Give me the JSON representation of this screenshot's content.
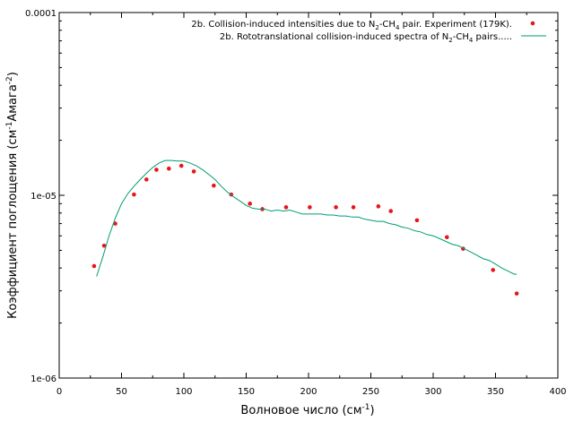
{
  "chart_data": {
    "type": "scatter",
    "yscale": "log",
    "xlim": [
      0,
      400
    ],
    "ylim": [
      1e-06,
      0.0001
    ],
    "xticks": [
      0,
      50,
      100,
      150,
      200,
      250,
      300,
      350,
      400
    ],
    "xtick_labels": [
      "0",
      "50",
      "100",
      "150",
      "200",
      "250",
      "300",
      "350",
      "400"
    ],
    "yticks": [
      1e-06,
      1e-05,
      0.0001
    ],
    "ytick_labels": [
      "1e-06",
      "1e-05",
      "0.0001"
    ],
    "xlabel": {
      "main": "Волновое число (см",
      "sup": "-1",
      "tail": ")"
    },
    "ylabel": {
      "part1": "Коэффициент поглощения (см",
      "sup1": "-1",
      "part2": "Амага",
      "sup2": "-2",
      "part3": ")"
    },
    "legend_position": "top-right",
    "grid": false,
    "series": [
      {
        "name": "2b. Collision-induced intensities due to N2-CH4 pair. Experiment (179K).",
        "legend": {
          "pre": "2b. Collision-induced intensities due to N",
          "sub1": "2",
          "mid": "-CH",
          "sub2": "4",
          "post": " pair. Experiment (179K)."
        },
        "kind": "points",
        "color": "#e8151b",
        "x": [
          28,
          36,
          45,
          60,
          70,
          78,
          88,
          98,
          108,
          124,
          138,
          153,
          163,
          182,
          201,
          222,
          236,
          256,
          266,
          287,
          311,
          324,
          348,
          367
        ],
        "y": [
          4.1e-06,
          5.3e-06,
          7e-06,
          1.01e-05,
          1.22e-05,
          1.38e-05,
          1.4e-05,
          1.45e-05,
          1.35e-05,
          1.13e-05,
          1.01e-05,
          9e-06,
          8.4e-06,
          8.6e-06,
          8.6e-06,
          8.6e-06,
          8.6e-06,
          8.7e-06,
          8.2e-06,
          7.3e-06,
          5.9e-06,
          5.1e-06,
          3.9e-06,
          2.9e-06
        ]
      },
      {
        "name": "2b. Rototranslational collision-induced spectra of N2-CH4 pairs.....",
        "legend": {
          "pre": "2b. Rototranslational collision-induced spectra of N",
          "sub1": "2",
          "mid": "-CH",
          "sub2": "4",
          "post": " pairs....."
        },
        "kind": "line",
        "color": "#009e73",
        "x": [
          30,
          35,
          40,
          45,
          50,
          55,
          60,
          65,
          70,
          75,
          80,
          85,
          90,
          95,
          100,
          105,
          110,
          115,
          120,
          125,
          130,
          135,
          140,
          145,
          150,
          155,
          160,
          165,
          170,
          175,
          180,
          185,
          190,
          195,
          200,
          205,
          210,
          215,
          220,
          225,
          230,
          235,
          240,
          245,
          250,
          255,
          260,
          265,
          270,
          275,
          280,
          285,
          290,
          295,
          300,
          305,
          310,
          315,
          320,
          325,
          330,
          335,
          340,
          345,
          350,
          355,
          360,
          365,
          367
        ],
        "y": [
          3.6e-06,
          4.6e-06,
          6e-06,
          7.5e-06,
          9e-06,
          1.02e-05,
          1.12e-05,
          1.22e-05,
          1.32e-05,
          1.42e-05,
          1.5e-05,
          1.55e-05,
          1.55e-05,
          1.54e-05,
          1.54e-05,
          1.5e-05,
          1.45e-05,
          1.38e-05,
          1.3e-05,
          1.22e-05,
          1.12e-05,
          1.04e-05,
          9.8e-06,
          9.3e-06,
          8.8e-06,
          8.5e-06,
          8.4e-06,
          8.4e-06,
          8.2e-06,
          8.3e-06,
          8.2e-06,
          8.3e-06,
          8.1e-06,
          7.9e-06,
          7.9e-06,
          7.9e-06,
          7.9e-06,
          7.8e-06,
          7.8e-06,
          7.7e-06,
          7.7e-06,
          7.6e-06,
          7.6e-06,
          7.4e-06,
          7.3e-06,
          7.2e-06,
          7.2e-06,
          7e-06,
          6.9e-06,
          6.7e-06,
          6.6e-06,
          6.4e-06,
          6.3e-06,
          6.1e-06,
          6e-06,
          5.8e-06,
          5.6e-06,
          5.4e-06,
          5.3e-06,
          5.1e-06,
          4.9e-06,
          4.7e-06,
          4.5e-06,
          4.4e-06,
          4.2e-06,
          4e-06,
          3.85e-06,
          3.7e-06,
          3.7e-06
        ]
      }
    ]
  }
}
